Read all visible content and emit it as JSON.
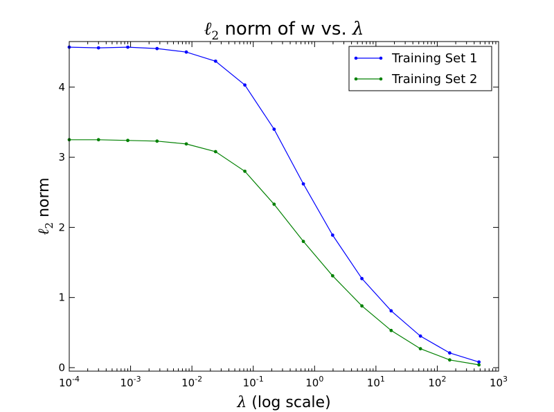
{
  "chart_data": {
    "type": "line",
    "title": {
      "symbol": "ℓ",
      "subscript": "2",
      "rest": " norm of w vs. ",
      "lambda": "λ"
    },
    "xlabel": {
      "lambda": "λ",
      "rest": " (log scale)"
    },
    "ylabel": {
      "symbol": "ℓ",
      "subscript": "2",
      "rest": " norm"
    },
    "xscale": "log",
    "xlim": [
      0.0001,
      1000
    ],
    "ylim": [
      -0.05,
      4.65
    ],
    "xtick_labels": [
      {
        "base": "10",
        "exp": "-4"
      },
      {
        "base": "10",
        "exp": "-3"
      },
      {
        "base": "10",
        "exp": "-2"
      },
      {
        "base": "10",
        "exp": "-1"
      },
      {
        "base": "10",
        "exp": "0"
      },
      {
        "base": "10",
        "exp": "1"
      },
      {
        "base": "10",
        "exp": "2"
      },
      {
        "base": "10",
        "exp": "3"
      }
    ],
    "xticks": [
      0.0001,
      0.001,
      0.01,
      0.1,
      1,
      10,
      100,
      1000
    ],
    "yticks": [
      0,
      1,
      2,
      3,
      4
    ],
    "ytick_labels": [
      "0",
      "1",
      "2",
      "3",
      "4"
    ],
    "x": [
      0.0001,
      0.0003,
      0.0009,
      0.0027,
      0.0081,
      0.0243,
      0.0729,
      0.2187,
      0.6561,
      1.9683,
      5.9049,
      17.7147,
      53.1441,
      159.4323,
      478.2969
    ],
    "series": [
      {
        "name": "Training Set 1",
        "color": "#0000ff",
        "values": [
          4.57,
          4.56,
          4.57,
          4.55,
          4.5,
          4.37,
          4.03,
          3.4,
          2.62,
          1.89,
          1.27,
          0.81,
          0.45,
          0.21,
          0.08
        ]
      },
      {
        "name": "Training Set 2",
        "color": "#008000",
        "values": [
          3.25,
          3.25,
          3.24,
          3.23,
          3.19,
          3.08,
          2.8,
          2.33,
          1.8,
          1.31,
          0.88,
          0.53,
          0.27,
          0.11,
          0.04
        ]
      }
    ],
    "legend_position": "top-right",
    "grid": false
  }
}
